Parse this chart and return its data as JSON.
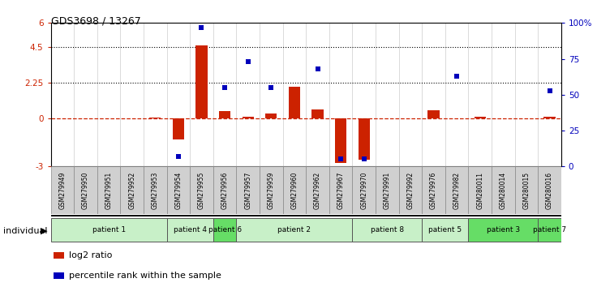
{
  "title": "GDS3698 / 13267",
  "samples": [
    "GSM279949",
    "GSM279950",
    "GSM279951",
    "GSM279952",
    "GSM279953",
    "GSM279954",
    "GSM279955",
    "GSM279956",
    "GSM279957",
    "GSM279959",
    "GSM279960",
    "GSM279962",
    "GSM279967",
    "GSM279970",
    "GSM279991",
    "GSM279992",
    "GSM279976",
    "GSM279982",
    "GSM280011",
    "GSM280014",
    "GSM280015",
    "GSM280016"
  ],
  "log2_ratio": [
    0.0,
    0.0,
    0.0,
    0.0,
    0.08,
    -1.3,
    4.6,
    0.45,
    0.1,
    0.3,
    2.0,
    0.6,
    -2.8,
    -2.6,
    0.0,
    0.0,
    0.55,
    0.0,
    0.1,
    0.0,
    0.0,
    0.1
  ],
  "percentile_rank": [
    null,
    null,
    null,
    null,
    null,
    7,
    97,
    55,
    73,
    55,
    null,
    68,
    5,
    5,
    null,
    null,
    null,
    63,
    null,
    null,
    null,
    53
  ],
  "patients": [
    {
      "label": "patient 1",
      "start": 0,
      "end": 5,
      "color": "#c8f0c8"
    },
    {
      "label": "patient 4",
      "start": 5,
      "end": 7,
      "color": "#c8f0c8"
    },
    {
      "label": "patient 6",
      "start": 7,
      "end": 8,
      "color": "#66dd66"
    },
    {
      "label": "patient 2",
      "start": 8,
      "end": 13,
      "color": "#c8f0c8"
    },
    {
      "label": "patient 8",
      "start": 13,
      "end": 16,
      "color": "#c8f0c8"
    },
    {
      "label": "patient 5",
      "start": 16,
      "end": 18,
      "color": "#c8f0c8"
    },
    {
      "label": "patient 3",
      "start": 18,
      "end": 21,
      "color": "#66dd66"
    },
    {
      "label": "patient 7",
      "start": 21,
      "end": 22,
      "color": "#66dd66"
    }
  ],
  "ylim_left": [
    -3,
    6
  ],
  "ylim_right": [
    0,
    100
  ],
  "yticks_left": [
    -3,
    0,
    2.25,
    4.5,
    6
  ],
  "ytick_labels_left": [
    "-3",
    "0",
    "2.25",
    "4.5",
    "6"
  ],
  "yticks_right": [
    0,
    25,
    50,
    75,
    100
  ],
  "ytick_labels_right": [
    "0",
    "25",
    "50",
    "75",
    "100%"
  ],
  "hlines_dotted": [
    2.25,
    4.5
  ],
  "bar_color": "#cc2200",
  "dot_color": "#0000bb",
  "zero_line_color": "#cc2200",
  "dot_size": 22,
  "individual_label": "individual",
  "legend_log2": "log2 ratio",
  "legend_pct": "percentile rank within the sample",
  "bg_color": "#ffffff",
  "xticklabel_bg": "#d8d8d8"
}
